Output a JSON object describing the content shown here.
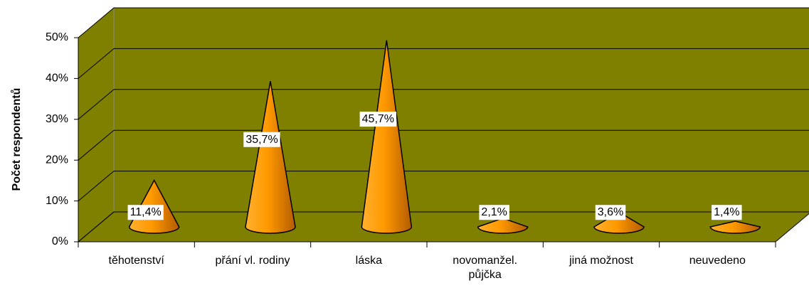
{
  "chart_data": {
    "type": "cone",
    "y_label": "Počet respondentů",
    "categories": [
      "těhotenství",
      "přání vl. rodiny",
      "láska",
      "novomanžel. půjčka",
      "jiná možnost",
      "neuvedeno"
    ],
    "values": [
      11.4,
      35.7,
      45.7,
      2.1,
      3.6,
      1.4
    ],
    "value_labels": [
      "11,4%",
      "35,7%",
      "45,7%",
      "2,1%",
      "3,6%",
      "1,4%"
    ],
    "color": "#ff9900",
    "wall_color": "#808000",
    "ylim": [
      0,
      50
    ],
    "yticks": [
      {
        "value": 0,
        "label": "0%"
      },
      {
        "value": 10,
        "label": "10%"
      },
      {
        "value": 20,
        "label": "20%"
      },
      {
        "value": 30,
        "label": "30%"
      },
      {
        "value": 40,
        "label": "40%"
      },
      {
        "value": 50,
        "label": "50%"
      }
    ],
    "grid": true
  }
}
